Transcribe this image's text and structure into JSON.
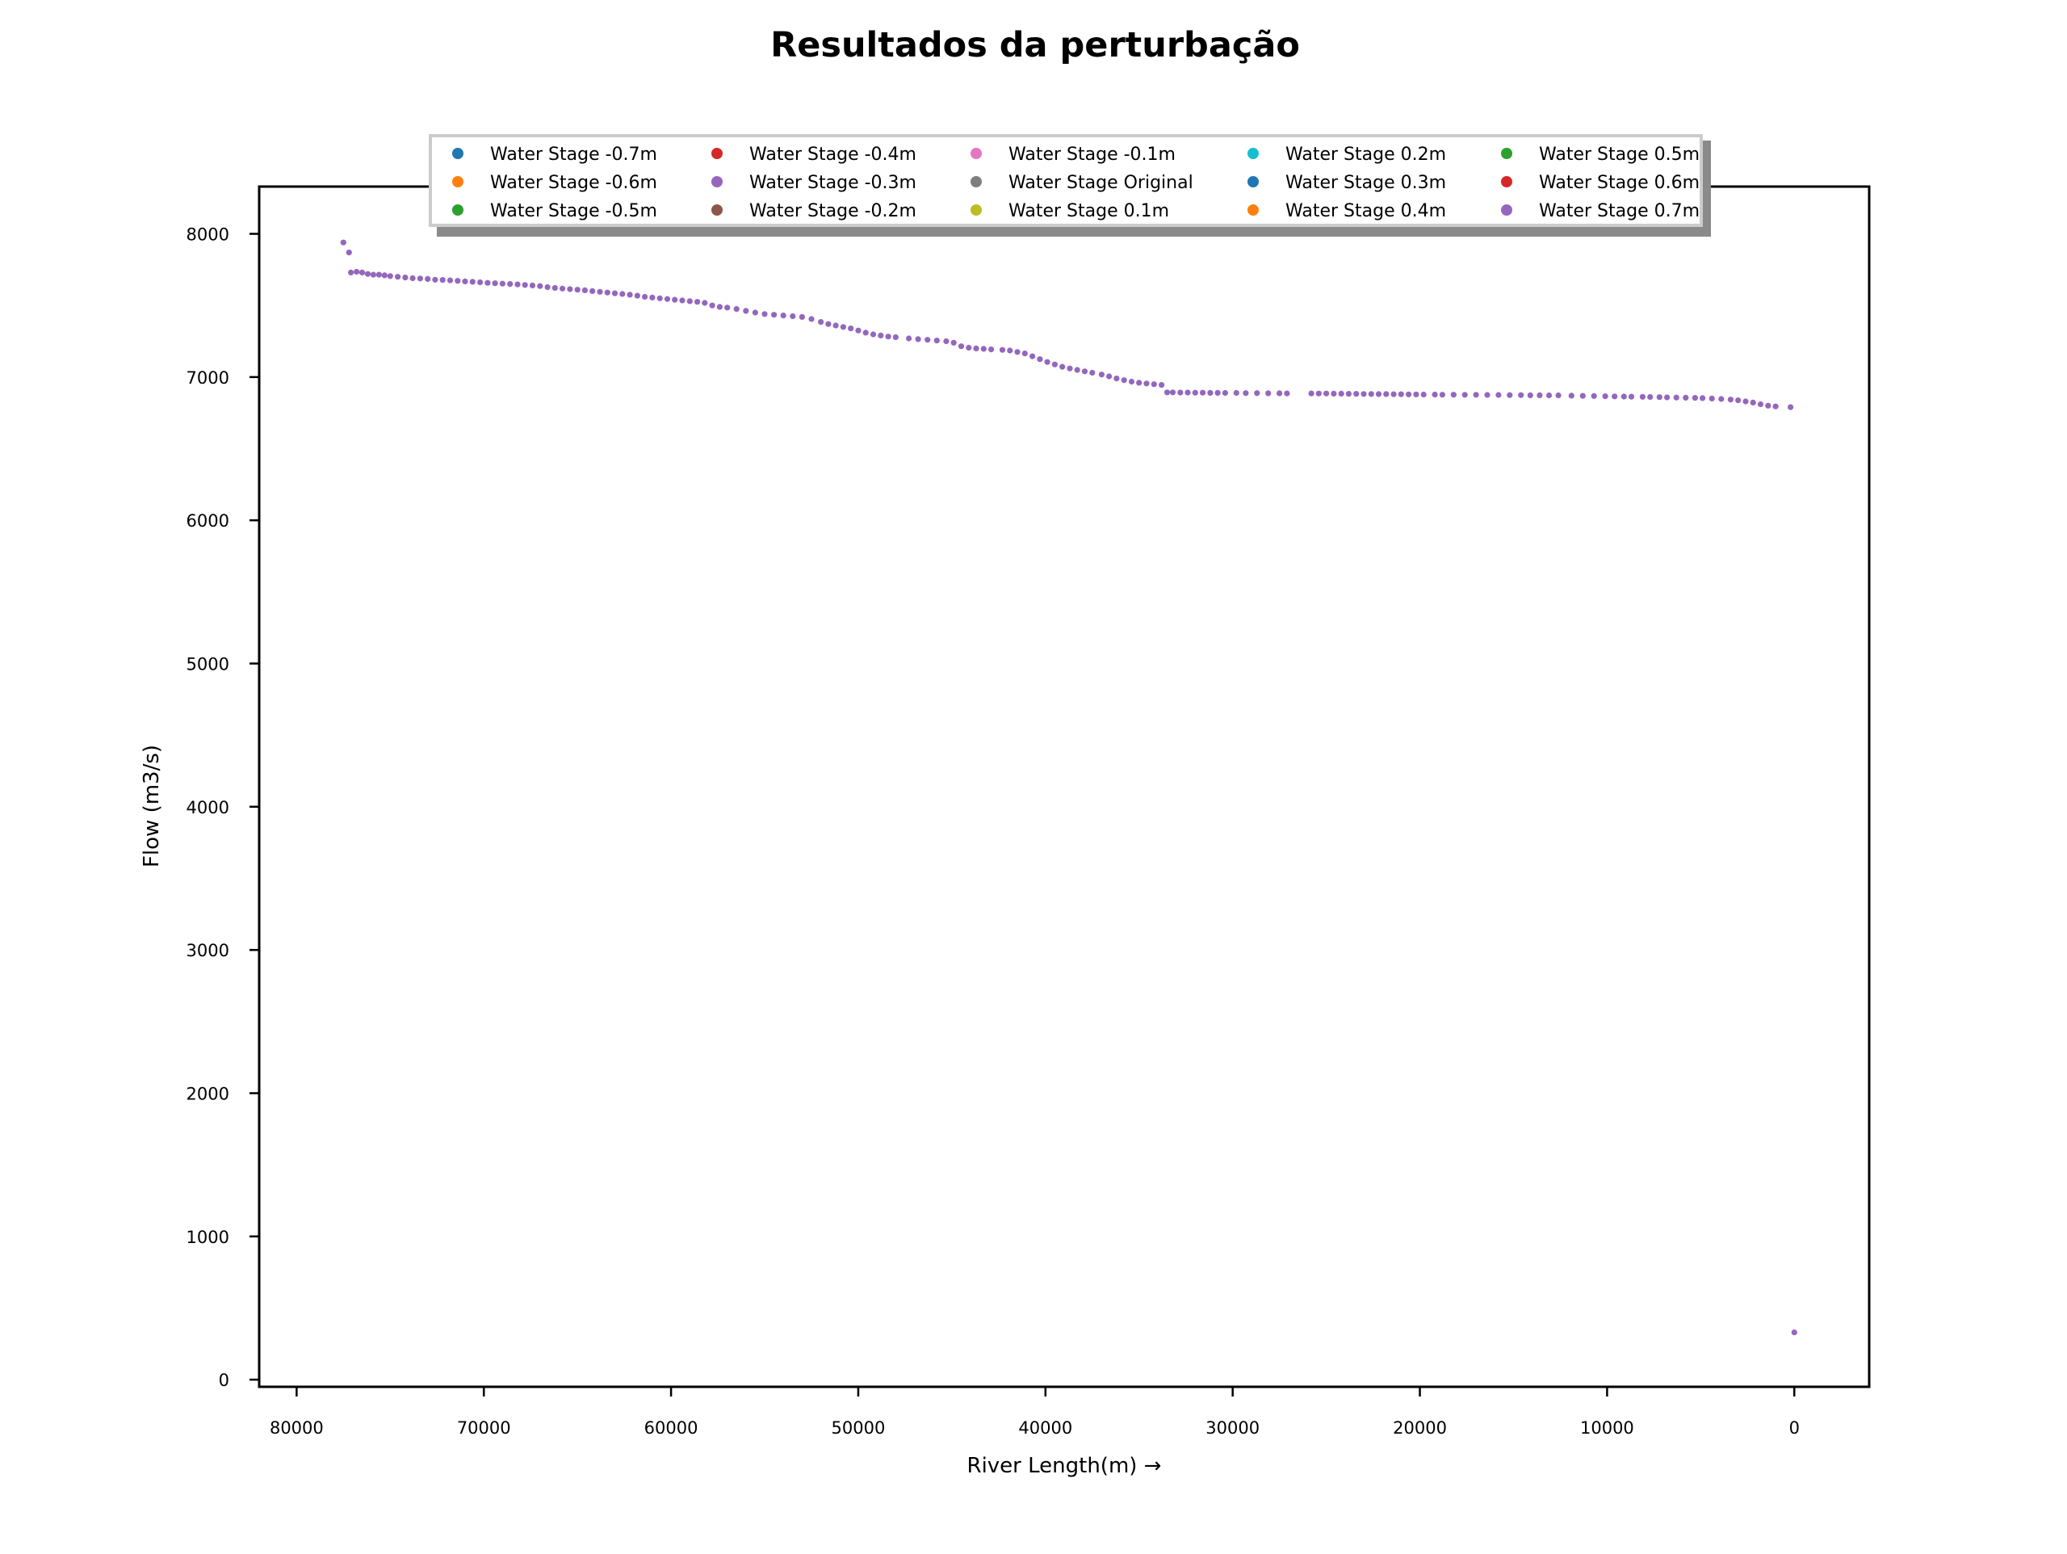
{
  "chart_data": {
    "type": "scatter",
    "title": "Resultados da perturbação",
    "xlabel": "River Length(m) →",
    "ylabel": "Flow (m3/s)",
    "xlim": [
      82000,
      -4000
    ],
    "ylim": [
      -50,
      8330
    ],
    "x_ticks": [
      80000,
      70000,
      60000,
      50000,
      40000,
      30000,
      20000,
      10000,
      0
    ],
    "x_tick_labels": [
      "80000",
      "70000",
      "60000",
      "50000",
      "40000",
      "30000",
      "20000",
      "10000",
      "0"
    ],
    "y_ticks": [
      0,
      1000,
      2000,
      3000,
      4000,
      5000,
      6000,
      7000,
      8000
    ],
    "y_tick_labels": [
      "0",
      "1000",
      "2000",
      "3000",
      "4000",
      "5000",
      "6000",
      "7000",
      "8000"
    ],
    "grid": false,
    "legend_position": "top-center",
    "series": [
      {
        "name": "Water Stage -0.7m",
        "color": "#1f77b4"
      },
      {
        "name": "Water Stage -0.6m",
        "color": "#ff7f0e"
      },
      {
        "name": "Water Stage -0.5m",
        "color": "#2ca02c"
      },
      {
        "name": "Water Stage -0.4m",
        "color": "#d62728"
      },
      {
        "name": "Water Stage -0.3m",
        "color": "#9467bd"
      },
      {
        "name": "Water Stage -0.2m",
        "color": "#8c564b"
      },
      {
        "name": "Water Stage -0.1m",
        "color": "#e377c2"
      },
      {
        "name": "Water Stage Original",
        "color": "#7f7f7f"
      },
      {
        "name": "Water Stage 0.1m",
        "color": "#bcbd22"
      },
      {
        "name": "Water Stage 0.2m",
        "color": "#17becf"
      },
      {
        "name": "Water Stage 0.3m",
        "color": "#1f77b4"
      },
      {
        "name": "Water Stage 0.4m",
        "color": "#ff7f0e"
      },
      {
        "name": "Water Stage 0.5m",
        "color": "#2ca02c"
      },
      {
        "name": "Water Stage 0.6m",
        "color": "#d62728"
      },
      {
        "name": "Water Stage 0.7m",
        "color": "#9467bd"
      }
    ],
    "points": [
      [
        77500,
        7940
      ],
      [
        77200,
        7870
      ],
      [
        77100,
        7730
      ],
      [
        76800,
        7735
      ],
      [
        76500,
        7730
      ],
      [
        76200,
        7720
      ],
      [
        75900,
        7715
      ],
      [
        75600,
        7715
      ],
      [
        75300,
        7710
      ],
      [
        75000,
        7705
      ],
      [
        74600,
        7700
      ],
      [
        74200,
        7695
      ],
      [
        73800,
        7690
      ],
      [
        73400,
        7688
      ],
      [
        73000,
        7685
      ],
      [
        72600,
        7680
      ],
      [
        72200,
        7678
      ],
      [
        71800,
        7675
      ],
      [
        71400,
        7672
      ],
      [
        71000,
        7668
      ],
      [
        70600,
        7665
      ],
      [
        70200,
        7662
      ],
      [
        69800,
        7658
      ],
      [
        69400,
        7655
      ],
      [
        69000,
        7652
      ],
      [
        68600,
        7650
      ],
      [
        68200,
        7647
      ],
      [
        67800,
        7643
      ],
      [
        67400,
        7640
      ],
      [
        67000,
        7635
      ],
      [
        66600,
        7628
      ],
      [
        66200,
        7622
      ],
      [
        65800,
        7618
      ],
      [
        65400,
        7614
      ],
      [
        65000,
        7610
      ],
      [
        64600,
        7606
      ],
      [
        64200,
        7600
      ],
      [
        63800,
        7595
      ],
      [
        63400,
        7590
      ],
      [
        63000,
        7585
      ],
      [
        62600,
        7580
      ],
      [
        62200,
        7575
      ],
      [
        61800,
        7568
      ],
      [
        61400,
        7560
      ],
      [
        61000,
        7555
      ],
      [
        60600,
        7550
      ],
      [
        60200,
        7545
      ],
      [
        59800,
        7540
      ],
      [
        59400,
        7535
      ],
      [
        59000,
        7530
      ],
      [
        58600,
        7525
      ],
      [
        58200,
        7518
      ],
      [
        57800,
        7500
      ],
      [
        57400,
        7490
      ],
      [
        57000,
        7485
      ],
      [
        56500,
        7475
      ],
      [
        56000,
        7462
      ],
      [
        55500,
        7450
      ],
      [
        55000,
        7440
      ],
      [
        54500,
        7435
      ],
      [
        54000,
        7430
      ],
      [
        53500,
        7425
      ],
      [
        53000,
        7420
      ],
      [
        52500,
        7405
      ],
      [
        52000,
        7385
      ],
      [
        51600,
        7370
      ],
      [
        51200,
        7360
      ],
      [
        50800,
        7350
      ],
      [
        50400,
        7340
      ],
      [
        50000,
        7325
      ],
      [
        49600,
        7310
      ],
      [
        49200,
        7298
      ],
      [
        48800,
        7290
      ],
      [
        48400,
        7283
      ],
      [
        48000,
        7278
      ],
      [
        47300,
        7270
      ],
      [
        46800,
        7265
      ],
      [
        46300,
        7260
      ],
      [
        45800,
        7255
      ],
      [
        45300,
        7250
      ],
      [
        44900,
        7240
      ],
      [
        44500,
        7215
      ],
      [
        44100,
        7205
      ],
      [
        43700,
        7200
      ],
      [
        43300,
        7197
      ],
      [
        42900,
        7193
      ],
      [
        42300,
        7190
      ],
      [
        41900,
        7185
      ],
      [
        41500,
        7175
      ],
      [
        41100,
        7165
      ],
      [
        40700,
        7145
      ],
      [
        40300,
        7125
      ],
      [
        39900,
        7105
      ],
      [
        39500,
        7088
      ],
      [
        39100,
        7072
      ],
      [
        38700,
        7060
      ],
      [
        38300,
        7050
      ],
      [
        37900,
        7040
      ],
      [
        37500,
        7030
      ],
      [
        37000,
        7018
      ],
      [
        36600,
        7005
      ],
      [
        36200,
        6990
      ],
      [
        35800,
        6978
      ],
      [
        35400,
        6968
      ],
      [
        35000,
        6960
      ],
      [
        34600,
        6955
      ],
      [
        34200,
        6950
      ],
      [
        33800,
        6945
      ],
      [
        33500,
        6893
      ],
      [
        33200,
        6893
      ],
      [
        32800,
        6892
      ],
      [
        32400,
        6892
      ],
      [
        32000,
        6891
      ],
      [
        31600,
        6891
      ],
      [
        31200,
        6890
      ],
      [
        30800,
        6890
      ],
      [
        30400,
        6889
      ],
      [
        29800,
        6889
      ],
      [
        29300,
        6888
      ],
      [
        28700,
        6888
      ],
      [
        28100,
        6887
      ],
      [
        27500,
        6887
      ],
      [
        27100,
        6886
      ],
      [
        25800,
        6886
      ],
      [
        25400,
        6885
      ],
      [
        25000,
        6885
      ],
      [
        24600,
        6884
      ],
      [
        24200,
        6884
      ],
      [
        23800,
        6883
      ],
      [
        23400,
        6883
      ],
      [
        23000,
        6882
      ],
      [
        22600,
        6882
      ],
      [
        22200,
        6881
      ],
      [
        21800,
        6881
      ],
      [
        21400,
        6880
      ],
      [
        21000,
        6880
      ],
      [
        20600,
        6879
      ],
      [
        20200,
        6879
      ],
      [
        19800,
        6878
      ],
      [
        19200,
        6878
      ],
      [
        18800,
        6877
      ],
      [
        18200,
        6877
      ],
      [
        17600,
        6876
      ],
      [
        17000,
        6876
      ],
      [
        16400,
        6875
      ],
      [
        15800,
        6875
      ],
      [
        15200,
        6874
      ],
      [
        14600,
        6874
      ],
      [
        14100,
        6873
      ],
      [
        13600,
        6873
      ],
      [
        13100,
        6872
      ],
      [
        12600,
        6872
      ],
      [
        11900,
        6870
      ],
      [
        11300,
        6869
      ],
      [
        10700,
        6868
      ],
      [
        10100,
        6866
      ],
      [
        9600,
        6865
      ],
      [
        9100,
        6864
      ],
      [
        8700,
        6863
      ],
      [
        8100,
        6862
      ],
      [
        7700,
        6861
      ],
      [
        7200,
        6860
      ],
      [
        6800,
        6858
      ],
      [
        6300,
        6857
      ],
      [
        5800,
        6856
      ],
      [
        5300,
        6855
      ],
      [
        4900,
        6853
      ],
      [
        4400,
        6850
      ],
      [
        3900,
        6847
      ],
      [
        3400,
        6843
      ],
      [
        3000,
        6838
      ],
      [
        2600,
        6830
      ],
      [
        2200,
        6822
      ],
      [
        1800,
        6810
      ],
      [
        1400,
        6800
      ],
      [
        1000,
        6795
      ],
      [
        200,
        6790
      ],
      [
        0,
        330
      ]
    ]
  }
}
